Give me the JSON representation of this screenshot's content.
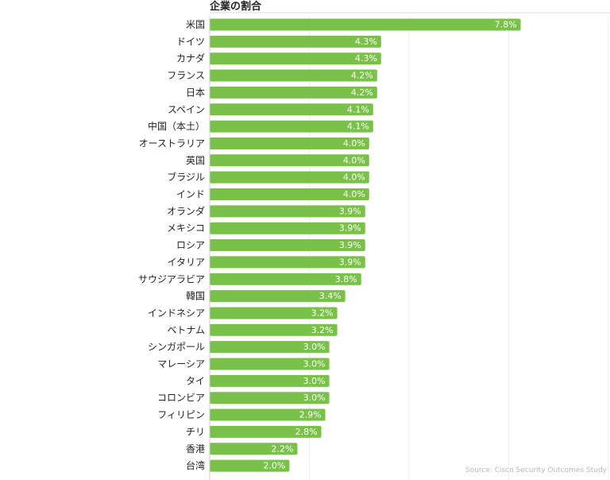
{
  "chart_data": {
    "type": "bar",
    "orientation": "horizontal",
    "title": "企業の割合",
    "xlabel": "",
    "ylabel": "",
    "xlim": [
      0,
      10
    ],
    "grid": true,
    "value_suffix": "%",
    "source": "Source: Cisco Security Outcomes Study",
    "categories": [
      "米国",
      "ドイツ",
      "カナダ",
      "フランス",
      "日本",
      "スペイン",
      "中国（本土）",
      "オーストラリア",
      "英国",
      "ブラジル",
      "インド",
      "オランダ",
      "メキシコ",
      "ロシア",
      "イタリア",
      "サウジアラビア",
      "韓国",
      "インドネシア",
      "ベトナム",
      "シンガポール",
      "マレーシア",
      "タイ",
      "コロンビア",
      "フィリピン",
      "チリ",
      "香港",
      "台湾"
    ],
    "values": [
      7.8,
      4.3,
      4.3,
      4.2,
      4.2,
      4.1,
      4.1,
      4.0,
      4.0,
      4.0,
      4.0,
      3.9,
      3.9,
      3.9,
      3.9,
      3.8,
      3.4,
      3.2,
      3.2,
      3.0,
      3.0,
      3.0,
      3.0,
      2.9,
      2.8,
      2.2,
      2.0
    ],
    "value_labels": [
      "7.8%",
      "4.3%",
      "4.3%",
      "4.2%",
      "4.2%",
      "4.1%",
      "4.1%",
      "4.0%",
      "4.0%",
      "4.0%",
      "4.0%",
      "3.9%",
      "3.9%",
      "3.9%",
      "3.9%",
      "3.8%",
      "3.4%",
      "3.2%",
      "3.2%",
      "3.0%",
      "3.0%",
      "3.0%",
      "3.0%",
      "2.9%",
      "2.8%",
      "2.2%",
      "2.0%"
    ]
  },
  "colors": {
    "bar": "#7ac14a",
    "grid": "#eeeeee",
    "axis": "#cccccc",
    "label": "#222222",
    "source": "#b8b8b8"
  }
}
